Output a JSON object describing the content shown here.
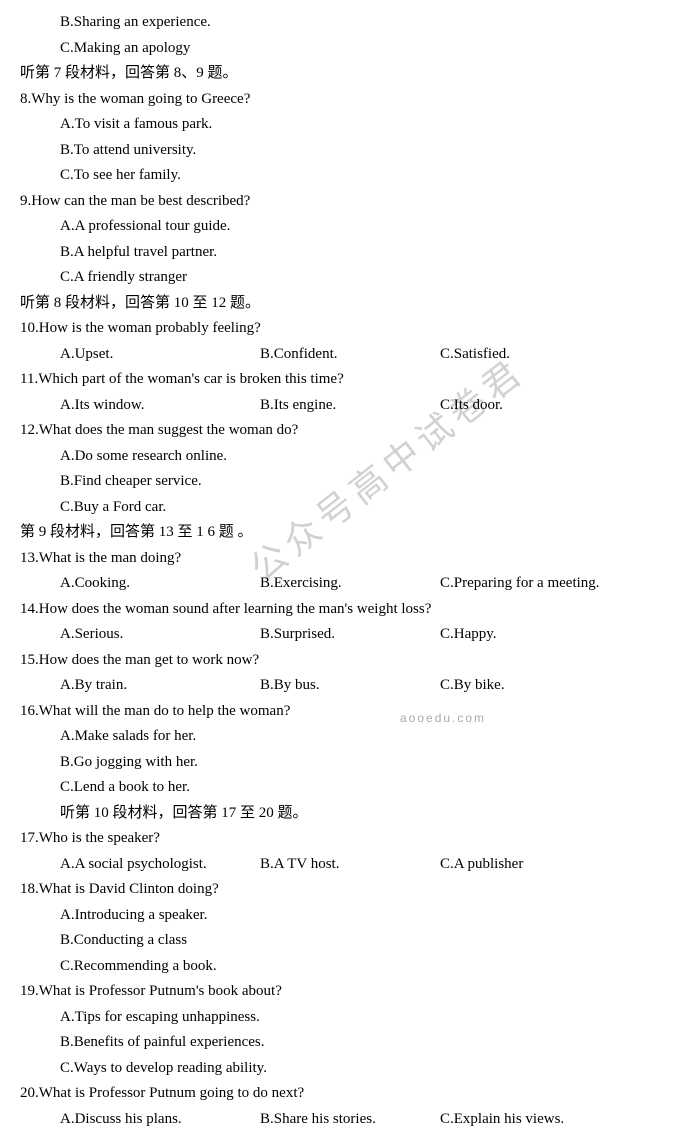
{
  "colors": {
    "text": "#000000",
    "background": "#ffffff",
    "watermark": "rgba(0,0,0,0.18)",
    "small_watermark": "rgba(0,0,0,0.35)"
  },
  "typography": {
    "body_fontsize": 15,
    "body_fontfamily": "Times New Roman, serif",
    "watermark_fontsize": 36,
    "small_watermark_fontsize": 12
  },
  "watermark_text": "公众号高中试卷君",
  "small_watermark_text": "aooedu.com",
  "partial_options": {
    "b": "B.Sharing an experience.",
    "c": "C.Making an apology"
  },
  "section7": "听第 7 段材料，回答第 8、9 题。",
  "q8": {
    "text": "8.Why is the woman going to Greece?",
    "a": "A.To visit a famous park.",
    "b": "B.To attend university.",
    "c": "C.To see her family."
  },
  "q9": {
    "text": "9.How can the man be best described?",
    "a": "A.A professional tour guide.",
    "b": "B.A helpful travel partner.",
    "c": "C.A friendly stranger"
  },
  "section8": "听第 8  段材料，回答第 10 至 12 题。",
  "q10": {
    "text": "10.How is the woman probably feeling?",
    "a": "A.Upset.",
    "b": "B.Confident.",
    "c": "C.Satisfied."
  },
  "q11": {
    "text": "11.Which part of the woman's car is broken this time?",
    "a": "A.Its window.",
    "b": "B.Its engine.",
    "c": "C.Its door."
  },
  "q12": {
    "text": "12.What does the man suggest the woman do?",
    "a": "A.Do some research online.",
    "b": "B.Find cheaper service.",
    "c": "C.Buy a Ford car."
  },
  "section9": "第 9 段材料，回答第 13  至  1 6  题  。",
  "q13": {
    "text": "13.What is the man doing?",
    "a": "A.Cooking.",
    "b": "B.Exercising.",
    "c": "C.Preparing for a meeting."
  },
  "q14": {
    "text": "14.How does the woman sound after learning the man's weight loss?",
    "a": "A.Serious.",
    "b": "B.Surprised.",
    "c": "C.Happy."
  },
  "q15": {
    "text": "15.How does the man get to work now?",
    "a": "A.By train.",
    "b": "B.By bus.",
    "c": "C.By bike."
  },
  "q16": {
    "text": "16.What will the man do to help the woman?",
    "a": "A.Make salads for her.",
    "b": "B.Go jogging with her.",
    "c": "C.Lend a book to her."
  },
  "section10": "听第 10  段材料，回答第 17 至 20 题。",
  "q17": {
    "text": "17.Who is the speaker?",
    "a": "A.A social psychologist.",
    "b": "B.A TV host.",
    "c": "C.A publisher"
  },
  "q18": {
    "text": "18.What is David Clinton doing?",
    "a": "A.Introducing a speaker.",
    "b": "B.Conducting a class",
    "c": "C.Recommending a book."
  },
  "q19": {
    "text": "19.What is Professor Putnum's book about?",
    "a": "A.Tips for escaping unhappiness.",
    "b": "B.Benefits of painful experiences.",
    "c": "C.Ways to develop reading ability."
  },
  "q20": {
    "text": "20.What is Professor Putnum going to do next?",
    "a": "A.Discuss his plans.",
    "b": "B.Share his stories.",
    "c": "C.Explain his views."
  }
}
